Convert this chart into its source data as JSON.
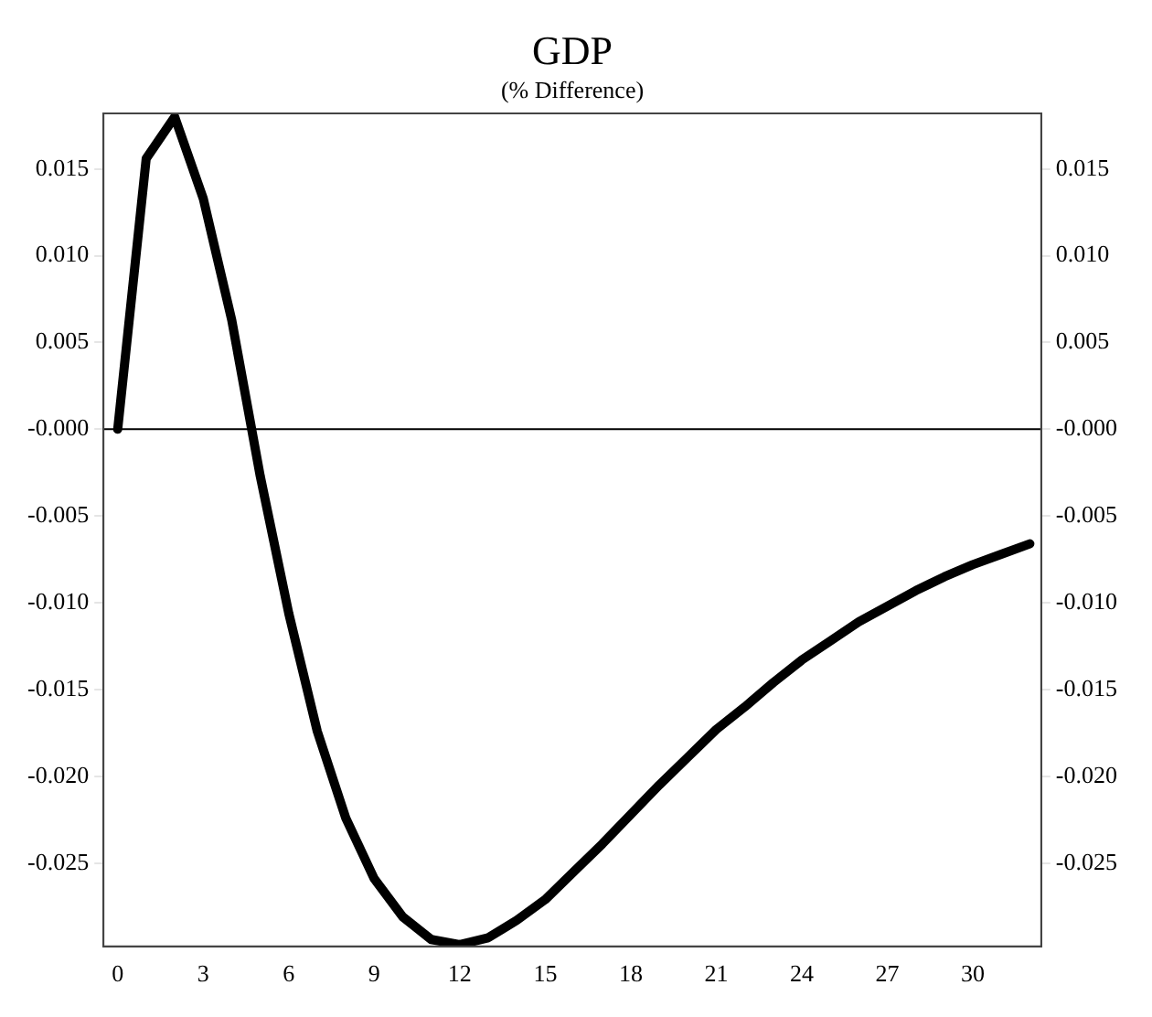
{
  "chart_data": {
    "type": "line",
    "title": "GDP",
    "subtitle": "(% Difference)",
    "x": [
      0,
      1,
      2,
      3,
      4,
      5,
      6,
      7,
      8,
      9,
      10,
      11,
      12,
      13,
      14,
      15,
      16,
      17,
      18,
      19,
      20,
      21,
      22,
      23,
      24,
      25,
      26,
      27,
      28,
      29,
      30,
      31,
      32
    ],
    "series": [
      {
        "color": "#000000",
        "values": [
          0,
          0.0156,
          0.018,
          0.0133,
          0.0063,
          -0.0027,
          -0.0106,
          -0.0174,
          -0.0224,
          -0.0259,
          -0.0281,
          -0.0294,
          -0.0297,
          -0.0293,
          -0.0283,
          -0.0271,
          -0.0255,
          -0.0239,
          -0.0222,
          -0.0205,
          -0.0189,
          -0.0173,
          -0.016,
          -0.0146,
          -0.0133,
          -0.0122,
          -0.0111,
          -0.0102,
          -0.0093,
          -0.0085,
          -0.0078,
          -0.0072,
          -0.0066
        ]
      }
    ],
    "xlim": [
      -0.5,
      32.4
    ],
    "xticks": [
      0,
      3,
      6,
      9,
      12,
      15,
      18,
      21,
      24,
      27,
      30
    ],
    "ylim": [
      -0.0298,
      0.0182
    ],
    "yticks": [
      {
        "value": -0.025,
        "label": "-0.025"
      },
      {
        "value": -0.02,
        "label": "-0.020"
      },
      {
        "value": -0.015,
        "label": "-0.015"
      },
      {
        "value": -0.01,
        "label": "-0.010"
      },
      {
        "value": -0.005,
        "label": "-0.005"
      },
      {
        "value": 0,
        "label": "-0.000"
      },
      {
        "value": 0.005,
        "label": "0.005"
      },
      {
        "value": 0.01,
        "label": "0.010"
      },
      {
        "value": 0.015,
        "label": "0.015"
      }
    ],
    "y2lim": [
      -0.0298,
      0.0182
    ],
    "y2ticks": [
      {
        "value": -0.025,
        "label": "-0.025"
      },
      {
        "value": -0.02,
        "label": "-0.020"
      },
      {
        "value": -0.015,
        "label": "-0.015"
      },
      {
        "value": -0.01,
        "label": "-0.010"
      },
      {
        "value": -0.005,
        "label": "-0.005"
      },
      {
        "value": 0,
        "label": "-0.000"
      },
      {
        "value": 0.005,
        "label": "0.005"
      },
      {
        "value": 0.01,
        "label": "0.010"
      },
      {
        "value": 0.015,
        "label": "0.015"
      }
    ],
    "ref_lines": [
      {
        "axis": "y",
        "value": 0,
        "color": "#000000"
      }
    ],
    "grid": false,
    "legend": false,
    "marker": "none",
    "line_style": "solid"
  }
}
